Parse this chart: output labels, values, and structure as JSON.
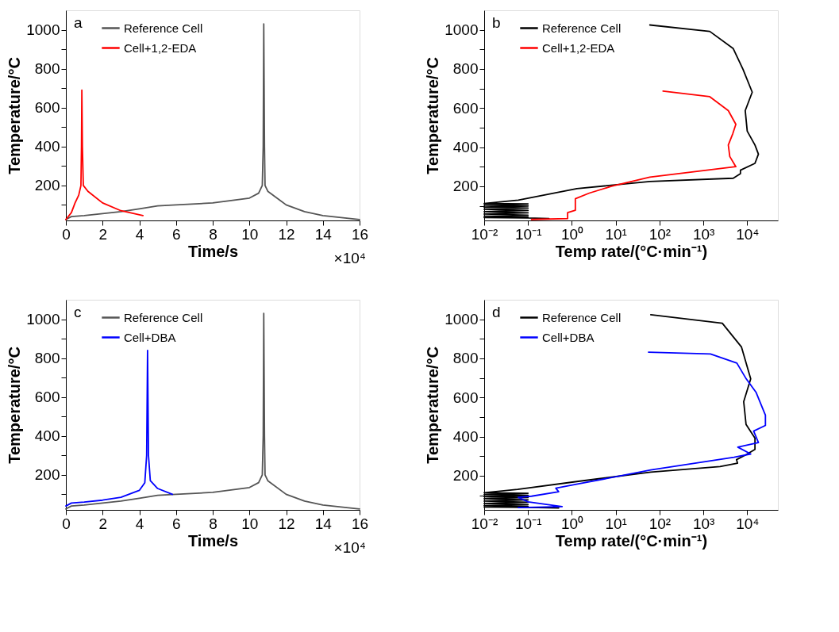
{
  "chart_data": [
    {
      "type": "line",
      "xlabel": "Time/s",
      "ylabel": "Temperature/°C",
      "annotations": [
        "a",
        "×10⁴"
      ],
      "legend": "top left",
      "grid": false,
      "xlim": [
        0,
        16
      ],
      "xticks": [
        0,
        2,
        4,
        6,
        8,
        10,
        12,
        14,
        16
      ],
      "ylim": [
        20,
        1100
      ],
      "yticks": [
        {
          "value": 100,
          "label": null
        },
        200,
        {
          "value": 300,
          "label": null
        },
        400,
        {
          "value": 500,
          "label": null
        },
        600,
        {
          "value": 700,
          "label": null
        },
        800,
        {
          "value": 900,
          "label": null
        },
        1000
      ],
      "series": [
        {
          "name": "Reference Cell",
          "color": "#555555",
          "x": [
            0,
            0.3,
            1,
            2,
            3,
            4,
            5,
            6,
            8,
            10,
            10.5,
            10.7,
            10.75,
            10.78,
            10.82,
            10.85,
            11,
            12,
            13,
            14,
            15,
            16
          ],
          "values": [
            25,
            40,
            45,
            55,
            65,
            80,
            95,
            100,
            110,
            135,
            160,
            200,
            400,
            1030,
            400,
            200,
            170,
            100,
            65,
            45,
            35,
            25
          ]
        },
        {
          "name": "Cell+1,2-EDA",
          "color": "#ff0000",
          "x": [
            0,
            0.3,
            0.5,
            0.7,
            0.82,
            0.85,
            0.87,
            0.9,
            0.95,
            1.2,
            2,
            3,
            4.2
          ],
          "values": [
            25,
            60,
            110,
            150,
            200,
            400,
            690,
            400,
            200,
            170,
            110,
            70,
            45
          ]
        }
      ]
    },
    {
      "type": "line",
      "xlabel": "Temp rate/(°C·min⁻¹)",
      "ylabel": "Temperature/°C",
      "annotations": [
        "b"
      ],
      "legend": "top left",
      "grid": false,
      "log": "x",
      "xlim": [
        0.01,
        50000
      ],
      "xticks": [
        {
          "value": 0.01,
          "label": "10⁻²"
        },
        {
          "value": 0.1,
          "label": "10⁻¹"
        },
        {
          "value": 1,
          "label": "10⁰"
        },
        {
          "value": 10,
          "label": "10¹"
        },
        {
          "value": 100,
          "label": "10²"
        },
        {
          "value": 1000,
          "label": "10³"
        },
        {
          "value": 10000,
          "label": "10⁴"
        }
      ],
      "ylim": [
        25,
        1100
      ],
      "yticks": [
        {
          "value": 100,
          "label": null
        },
        200,
        {
          "value": 300,
          "label": null
        },
        400,
        {
          "value": 500,
          "label": null
        },
        600,
        {
          "value": 700,
          "label": null
        },
        800,
        {
          "value": 900,
          "label": null
        },
        1000
      ],
      "series": [
        {
          "name": "Reference Cell",
          "color": "#000000",
          "x": [
            60,
            1400,
            4800,
            8000,
            13000,
            9000,
            10000,
            15000,
            18000,
            15000,
            7000,
            7000,
            4800,
            60,
            1.3,
            0.06,
            0.01,
            0.1,
            0.01,
            0.1,
            0.01,
            0.1,
            0.01,
            0.1,
            0.01,
            0.1,
            0.01,
            0.1,
            0.01,
            0.1,
            0.01,
            0.1,
            0.3
          ],
          "values": [
            1025,
            992,
            904,
            798,
            681,
            587,
            482,
            411,
            364,
            317,
            282,
            264,
            241,
            224,
            188,
            129,
            112,
            110,
            104,
            99,
            93,
            88,
            82,
            76,
            70,
            64,
            58,
            52,
            47,
            43,
            40,
            38,
            35
          ]
        },
        {
          "name": "Cell+1,2-EDA",
          "color": "#ff0000",
          "x": [
            120,
            1400,
            3700,
            5500,
            4700,
            3700,
            4000,
            5500,
            60,
            8,
            2.5,
            1.2,
            1.2,
            0.8,
            0.8,
            0.12
          ],
          "values": [
            687,
            658,
            587,
            517,
            470,
            411,
            352,
            300,
            247,
            200,
            165,
            136,
            77,
            65,
            35,
            30
          ]
        }
      ]
    },
    {
      "type": "line",
      "xlabel": "Time/s",
      "ylabel": "Temperature/°C",
      "annotations": [
        "c",
        "×10⁴"
      ],
      "legend": "top left",
      "grid": false,
      "xlim": [
        0,
        16
      ],
      "xticks": [
        0,
        2,
        4,
        6,
        8,
        10,
        12,
        14,
        16
      ],
      "ylim": [
        20,
        1100
      ],
      "yticks": [
        {
          "value": 100,
          "label": null
        },
        200,
        {
          "value": 300,
          "label": null
        },
        400,
        {
          "value": 500,
          "label": null
        },
        600,
        {
          "value": 700,
          "label": null
        },
        800,
        {
          "value": 900,
          "label": null
        },
        1000
      ],
      "series": [
        {
          "name": "Reference Cell",
          "color": "#555555",
          "x": [
            0,
            0.3,
            1,
            2,
            3,
            4,
            5,
            6,
            8,
            10,
            10.5,
            10.7,
            10.75,
            10.78,
            10.82,
            10.85,
            11,
            12,
            13,
            14,
            15,
            16
          ],
          "values": [
            25,
            40,
            45,
            55,
            65,
            80,
            95,
            100,
            110,
            135,
            160,
            200,
            400,
            1030,
            400,
            200,
            170,
            100,
            65,
            45,
            35,
            25
          ]
        },
        {
          "name": "Cell+DBA",
          "color": "#0000ff",
          "x": [
            0,
            0.3,
            1,
            2,
            3,
            4,
            4.3,
            4.4,
            4.45,
            4.5,
            4.6,
            5,
            5.8
          ],
          "values": [
            40,
            55,
            60,
            70,
            85,
            120,
            160,
            300,
            840,
            300,
            170,
            130,
            100
          ]
        }
      ]
    },
    {
      "type": "line",
      "xlabel": "Temp rate/(°C·min⁻¹)",
      "ylabel": "Temperature/°C",
      "annotations": [
        "d"
      ],
      "legend": "top left",
      "grid": false,
      "log": "x",
      "xlim": [
        0.01,
        50000
      ],
      "xticks": [
        {
          "value": 0.01,
          "label": "10⁻²"
        },
        {
          "value": 0.1,
          "label": "10⁻¹"
        },
        {
          "value": 1,
          "label": "10⁰"
        },
        {
          "value": 10,
          "label": "10¹"
        },
        {
          "value": 100,
          "label": "10²"
        },
        {
          "value": 1000,
          "label": "10³"
        },
        {
          "value": 10000,
          "label": "10⁴"
        }
      ],
      "ylim": [
        25,
        1100
      ],
      "yticks": [
        {
          "value": 100,
          "label": null
        },
        200,
        {
          "value": 300,
          "label": null
        },
        400,
        {
          "value": 500,
          "label": null
        },
        600,
        {
          "value": 700,
          "label": null
        },
        800,
        {
          "value": 900,
          "label": null
        },
        1000
      ],
      "series": [
        {
          "name": "Reference Cell",
          "color": "#000000",
          "x": [
            63,
            2700,
            7400,
            12000,
            8300,
            9400,
            15000,
            15000,
            9000,
            5700,
            6000,
            2400,
            63,
            1.4,
            0.058,
            0.01,
            0.1,
            0.01,
            0.1,
            0.01,
            0.1,
            0.01,
            0.1,
            0.01,
            0.1,
            0.01,
            0.1,
            0.01,
            0.1,
            0.01,
            0.1,
            0.5
          ],
          "values": [
            1023,
            980,
            858,
            695,
            579,
            462,
            392,
            334,
            305,
            282,
            264,
            247,
            218,
            171,
            130,
            113,
            110,
            104,
            99,
            93,
            88,
            82,
            76,
            70,
            64,
            58,
            52,
            47,
            43,
            40,
            38,
            35
          ]
        },
        {
          "name": "Cell+DBA",
          "color": "#0000ff",
          "x": [
            56,
            1450,
            5800,
            9500,
            16000,
            26000,
            26000,
            14000,
            18000,
            6100,
            12000,
            5000,
            63,
            1.5,
            0.43,
            0.5,
            0.12,
            0.06,
            0.1,
            0.6,
            0.06
          ],
          "values": [
            832,
            823,
            776,
            695,
            625,
            509,
            457,
            428,
            369,
            346,
            311,
            294,
            229,
            159,
            136,
            118,
            95,
            89,
            66,
            42,
            37
          ]
        }
      ]
    }
  ]
}
